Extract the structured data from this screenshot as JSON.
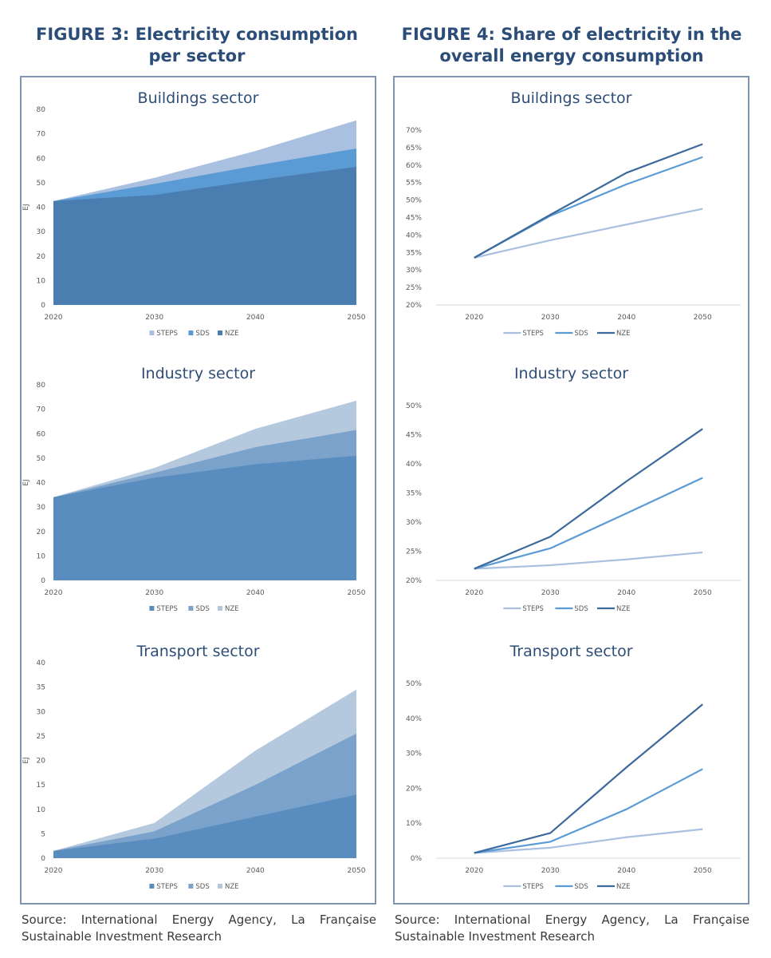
{
  "figures": [
    {
      "title": "FIGURE 3: Electricity consumption per sector",
      "title_lines": [
        "FIGURE 3: Electricity consumption",
        "per sector"
      ],
      "source": "Source: International Energy Agency, La Française Sustainable Investment Research"
    },
    {
      "title": "FIGURE 4: Share of electricity in the overall energy consumption",
      "title_lines": [
        "FIGURE 4: Share of electricity in the",
        "overall energy consumption"
      ],
      "source": "Source: International Energy Agency, La Française Sustainable Investment Research"
    }
  ],
  "chart_data": [
    {
      "id": "fig3-buildings",
      "type": "area",
      "title": "Buildings sector",
      "ylabel": "EJ",
      "xlabel": "",
      "x": [
        "2020",
        "2030",
        "2040",
        "2050"
      ],
      "ylim": [
        0,
        80
      ],
      "yticks": [
        0,
        10,
        20,
        30,
        40,
        50,
        60,
        70,
        80
      ],
      "ytick_labels": [
        "0",
        "10",
        "20",
        "30",
        "40",
        "50",
        "60",
        "70",
        "80"
      ],
      "legend": [
        "STEPS",
        "SDS",
        "NZE"
      ],
      "legend_position": "bottom",
      "series": [
        {
          "name": "STEPS",
          "values": [
            42.5,
            52,
            63,
            75.5
          ],
          "color": "#a9c0e1"
        },
        {
          "name": "SDS",
          "values": [
            42.5,
            49.5,
            57,
            64
          ],
          "color": "#5b9bd5"
        },
        {
          "name": "NZE",
          "values": [
            42.5,
            45,
            51,
            56.5
          ],
          "color": "#4a7db0"
        }
      ]
    },
    {
      "id": "fig3-industry",
      "type": "area",
      "title": "Industry sector",
      "ylabel": "EJ",
      "xlabel": "",
      "x": [
        "2020",
        "2030",
        "2040",
        "2050"
      ],
      "ylim": [
        0,
        80
      ],
      "yticks": [
        0,
        10,
        20,
        30,
        40,
        50,
        60,
        70,
        80
      ],
      "ytick_labels": [
        "0",
        "10",
        "20",
        "30",
        "40",
        "50",
        "60",
        "70",
        "80"
      ],
      "legend": [
        "STEPS",
        "SDS",
        "NZE"
      ],
      "legend_position": "bottom",
      "series": [
        {
          "name": "NZE",
          "values": [
            34,
            46,
            62,
            73.5
          ],
          "color": "#b4c8de"
        },
        {
          "name": "SDS",
          "values": [
            34,
            44,
            54.5,
            61.5
          ],
          "color": "#7aa2cb"
        },
        {
          "name": "STEPS",
          "values": [
            34,
            42,
            47.5,
            51
          ],
          "color": "#5a8dbf"
        }
      ],
      "legend_colors": [
        "#5a8dbf",
        "#7aa2cb",
        "#b4c8de"
      ]
    },
    {
      "id": "fig3-transport",
      "type": "area",
      "title": "Transport sector",
      "ylabel": "EJ",
      "xlabel": "",
      "x": [
        "2020",
        "2030",
        "2040",
        "2050"
      ],
      "ylim": [
        0,
        40
      ],
      "yticks": [
        0,
        5,
        10,
        15,
        20,
        25,
        30,
        35,
        40
      ],
      "ytick_labels": [
        "0",
        "5",
        "10",
        "15",
        "20",
        "25",
        "30",
        "35",
        "40"
      ],
      "legend": [
        "STEPS",
        "SDS",
        "NZE"
      ],
      "legend_position": "bottom",
      "series": [
        {
          "name": "NZE",
          "values": [
            1.5,
            7.2,
            22,
            34.5
          ],
          "color": "#b4c8de"
        },
        {
          "name": "SDS",
          "values": [
            1.5,
            5.5,
            15,
            25.5
          ],
          "color": "#7aa2cb"
        },
        {
          "name": "STEPS",
          "values": [
            1.5,
            4,
            8.5,
            13
          ],
          "color": "#5a8dbf"
        }
      ],
      "legend_colors": [
        "#5a8dbf",
        "#7aa2cb",
        "#b4c8de"
      ]
    },
    {
      "id": "fig4-buildings",
      "type": "line",
      "title": "Buildings sector",
      "ylabel": "",
      "xlabel": "",
      "x": [
        "2020",
        "2030",
        "2040",
        "2050"
      ],
      "ylim": [
        20,
        70
      ],
      "yticks": [
        20,
        25,
        30,
        35,
        40,
        45,
        50,
        55,
        60,
        65,
        70
      ],
      "ytick_labels": [
        "20%",
        "25%",
        "30%",
        "35%",
        "40%",
        "45%",
        "50%",
        "55%",
        "60%",
        "65%",
        "70%"
      ],
      "unit": "%",
      "legend": [
        "STEPS",
        "SDS",
        "NZE"
      ],
      "legend_position": "bottom",
      "series": [
        {
          "name": "STEPS",
          "values": [
            33.5,
            38.5,
            43,
            47.5
          ],
          "color": "#a9c0e1"
        },
        {
          "name": "SDS",
          "values": [
            33.5,
            45.5,
            54.5,
            62.3
          ],
          "color": "#5b9bd5"
        },
        {
          "name": "NZE",
          "values": [
            33.5,
            45.8,
            57.8,
            66
          ],
          "color": "#3d6a9c"
        }
      ]
    },
    {
      "id": "fig4-industry",
      "type": "line",
      "title": "Industry sector",
      "ylabel": "",
      "xlabel": "",
      "x": [
        "2020",
        "2030",
        "2040",
        "2050"
      ],
      "ylim": [
        20,
        50
      ],
      "yticks": [
        20,
        25,
        30,
        35,
        40,
        45,
        50
      ],
      "ytick_labels": [
        "20%",
        "25%",
        "30%",
        "35%",
        "40%",
        "45%",
        "50%"
      ],
      "unit": "%",
      "legend": [
        "STEPS",
        "SDS",
        "NZE"
      ],
      "legend_position": "bottom",
      "series": [
        {
          "name": "STEPS",
          "values": [
            22,
            22.6,
            23.6,
            24.8
          ],
          "color": "#a9c0e1"
        },
        {
          "name": "SDS",
          "values": [
            22,
            25.5,
            31.5,
            37.6
          ],
          "color": "#5b9bd5"
        },
        {
          "name": "NZE",
          "values": [
            22,
            27.5,
            37,
            46
          ],
          "color": "#3d6a9c"
        }
      ]
    },
    {
      "id": "fig4-transport",
      "type": "line",
      "title": "Transport sector",
      "ylabel": "",
      "xlabel": "",
      "x": [
        "2020",
        "2030",
        "2040",
        "2050"
      ],
      "ylim": [
        0,
        50
      ],
      "yticks": [
        0,
        10,
        20,
        30,
        40,
        50
      ],
      "ytick_labels": [
        "0%",
        "10%",
        "20%",
        "30%",
        "40%",
        "50%"
      ],
      "unit": "%",
      "legend": [
        "STEPS",
        "SDS",
        "NZE"
      ],
      "legend_position": "bottom",
      "series": [
        {
          "name": "STEPS",
          "values": [
            1.5,
            3,
            6,
            8.3
          ],
          "color": "#a9c0e1"
        },
        {
          "name": "SDS",
          "values": [
            1.5,
            4.7,
            14,
            25.5
          ],
          "color": "#5b9bd5"
        },
        {
          "name": "NZE",
          "values": [
            1.5,
            7.2,
            26,
            44
          ],
          "color": "#3d6a9c"
        }
      ]
    }
  ]
}
